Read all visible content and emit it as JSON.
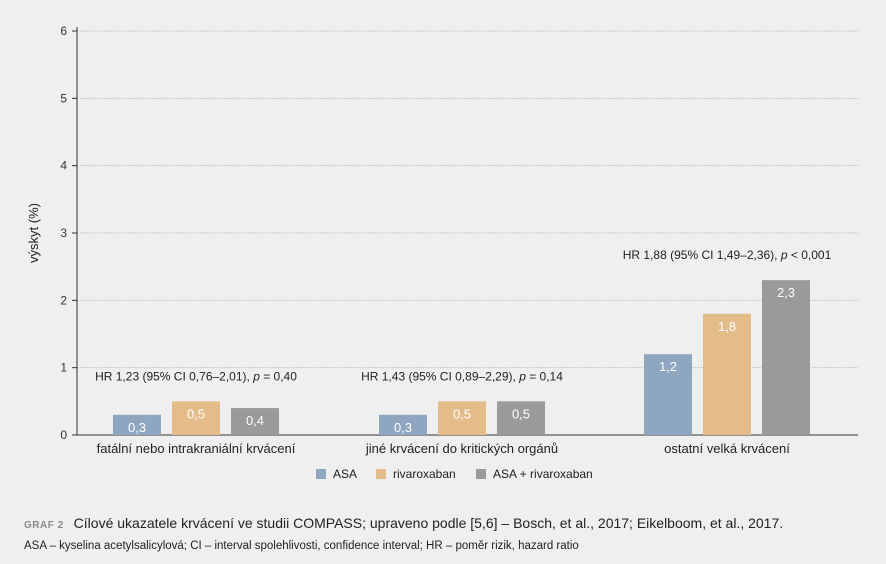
{
  "chart_data": {
    "type": "bar",
    "categories": [
      "fatální nebo intrakraniální krvácení",
      "jiné krvácení do kritických orgánů",
      "ostatní velká krvácení"
    ],
    "series": [
      {
        "name": "ASA",
        "color": "#8fa6c0",
        "values": [
          0.3,
          0.3,
          1.2
        ],
        "labels": [
          "0,3",
          "0,3",
          "1,2"
        ]
      },
      {
        "name": "rivaroxaban",
        "color": "#e4bc8a",
        "values": [
          0.5,
          0.5,
          1.8
        ],
        "labels": [
          "0,5",
          "0,5",
          "1,8"
        ]
      },
      {
        "name": "ASA + rivaroxaban",
        "color": "#9a9a9a",
        "values": [
          0.4,
          0.5,
          2.3
        ],
        "labels": [
          "0,4",
          "0,5",
          "2,3"
        ]
      }
    ],
    "annotations": [
      {
        "text": "HR 1,23 (95% CI 0,76–2,01), ",
        "p_label": "p",
        "p_text": " = 0,40"
      },
      {
        "text": "HR 1,43 (95% CI 0,89–2,29), ",
        "p_label": "p",
        "p_text": " = 0,14"
      },
      {
        "text": "HR 1,88 (95% CI 1,49–2,36), ",
        "p_label": "p",
        "p_text": " < 0,001"
      }
    ],
    "ylabel": "výskyt (%)",
    "xlabel": "",
    "ylim": [
      0,
      6
    ],
    "yticks": [
      "0",
      "1",
      "2",
      "3",
      "4",
      "5",
      "6"
    ],
    "grid": true,
    "legend_position": "bottom-center"
  },
  "caption": {
    "tag": "GRAF 2",
    "text": "Cílové ukazatele krvácení ve studii COMPASS; upraveno podle [5,6] – Bosch, et al., 2017; Eikelboom, et al., 2017."
  },
  "footnote": "ASA – kyselina acetylsalicylová; CI – interval spolehlivosti, confidence interval; HR – poměr rizik, hazard ratio"
}
